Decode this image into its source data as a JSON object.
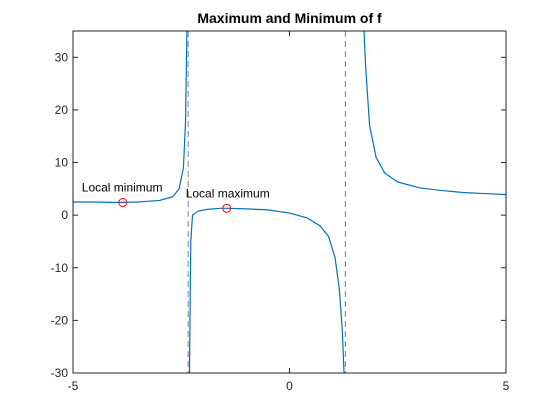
{
  "chart_data": {
    "type": "line",
    "title": "Maximum and Minimum of f",
    "xlabel": "",
    "ylabel": "",
    "xlim": [
      -5,
      5
    ],
    "ylim": [
      -30,
      35
    ],
    "grid": false,
    "xticks": [
      -5,
      0,
      5
    ],
    "xtick_labels": [
      "-5",
      "0",
      "5"
    ],
    "yticks": [
      -30,
      -20,
      -10,
      0,
      10,
      20,
      30
    ],
    "ytick_labels": [
      "-30",
      "-20",
      "-10",
      "0",
      "10",
      "20",
      "30"
    ],
    "series": [
      {
        "color": "#0072BD",
        "segments": [
          [
            [
              -5.0,
              2.5
            ],
            [
              -4.5,
              2.5
            ],
            [
              -4.0,
              2.4
            ],
            [
              -3.5,
              2.5
            ],
            [
              -3.0,
              2.8
            ],
            [
              -2.7,
              3.5
            ],
            [
              -2.55,
              5.0
            ],
            [
              -2.45,
              9.0
            ],
            [
              -2.4,
              18.0
            ],
            [
              -2.37,
              35.0
            ]
          ],
          [
            [
              -2.31,
              -30.0
            ],
            [
              -2.28,
              -5.0
            ],
            [
              -2.24,
              0.0
            ],
            [
              -2.1,
              0.8
            ],
            [
              -1.9,
              1.1
            ],
            [
              -1.6,
              1.3
            ],
            [
              -1.4,
              1.3
            ],
            [
              -1.0,
              1.2
            ],
            [
              -0.5,
              1.0
            ],
            [
              0.0,
              0.4
            ],
            [
              0.4,
              -0.5
            ],
            [
              0.7,
              -2.0
            ],
            [
              0.9,
              -4.0
            ],
            [
              1.05,
              -8.0
            ],
            [
              1.15,
              -14.0
            ],
            [
              1.22,
              -22.0
            ],
            [
              1.26,
              -30.0
            ]
          ],
          [
            [
              1.72,
              35.0
            ],
            [
              1.76,
              28.0
            ],
            [
              1.85,
              17.0
            ],
            [
              2.0,
              11.0
            ],
            [
              2.2,
              8.0
            ],
            [
              2.5,
              6.3
            ],
            [
              3.0,
              5.2
            ],
            [
              3.5,
              4.7
            ],
            [
              4.0,
              4.3
            ],
            [
              4.5,
              4.1
            ],
            [
              5.0,
              3.9
            ]
          ]
        ]
      }
    ],
    "asymptotes_x": [
      -2.34,
      1.29
    ],
    "extrema": [
      {
        "label": "Local minimum",
        "x": -3.85,
        "y": 2.4,
        "marker_color": "#FF0000"
      },
      {
        "label": "Local maximum",
        "x": -1.45,
        "y": 1.3,
        "marker_color": "#FF0000"
      }
    ]
  }
}
